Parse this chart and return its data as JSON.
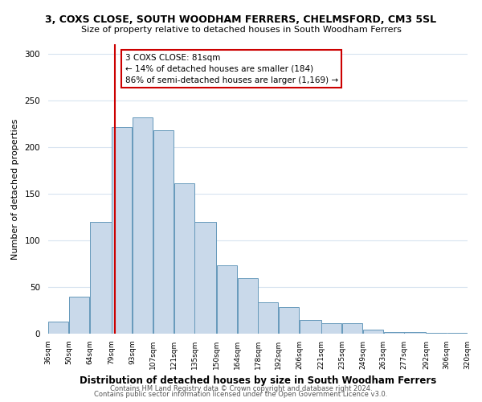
{
  "title": "3, COXS CLOSE, SOUTH WOODHAM FERRERS, CHELMSFORD, CM3 5SL",
  "subtitle": "Size of property relative to detached houses in South Woodham Ferrers",
  "xlabel": "Distribution of detached houses by size in South Woodham Ferrers",
  "ylabel": "Number of detached properties",
  "footer1": "Contains HM Land Registry data © Crown copyright and database right 2024.",
  "footer2": "Contains public sector information licensed under the Open Government Licence v3.0.",
  "bar_edges": [
    36,
    50,
    64,
    79,
    93,
    107,
    121,
    135,
    150,
    164,
    178,
    192,
    206,
    221,
    235,
    249,
    263,
    277,
    292,
    306,
    320
  ],
  "bar_heights": [
    13,
    40,
    120,
    221,
    232,
    218,
    161,
    120,
    73,
    59,
    34,
    28,
    15,
    11,
    11,
    4,
    2,
    2,
    1,
    1
  ],
  "bar_color": "#c9d9ea",
  "bar_edge_color": "#6699bb",
  "property_value": 81,
  "vline_color": "#cc0000",
  "annotation_title": "3 COXS CLOSE: 81sqm",
  "annotation_line1": "← 14% of detached houses are smaller (184)",
  "annotation_line2": "86% of semi-detached houses are larger (1,169) →",
  "annotation_box_color": "#ffffff",
  "annotation_box_edge": "#cc0000",
  "ylim": [
    0,
    310
  ],
  "xlim": [
    36,
    320
  ],
  "tick_labels": [
    "36sqm",
    "50sqm",
    "64sqm",
    "79sqm",
    "93sqm",
    "107sqm",
    "121sqm",
    "135sqm",
    "150sqm",
    "164sqm",
    "178sqm",
    "192sqm",
    "206sqm",
    "221sqm",
    "235sqm",
    "249sqm",
    "263sqm",
    "277sqm",
    "292sqm",
    "306sqm",
    "320sqm"
  ],
  "tick_positions": [
    36,
    50,
    64,
    79,
    93,
    107,
    121,
    135,
    150,
    164,
    178,
    192,
    206,
    221,
    235,
    249,
    263,
    277,
    292,
    306,
    320
  ],
  "yticks": [
    0,
    50,
    100,
    150,
    200,
    250,
    300
  ]
}
